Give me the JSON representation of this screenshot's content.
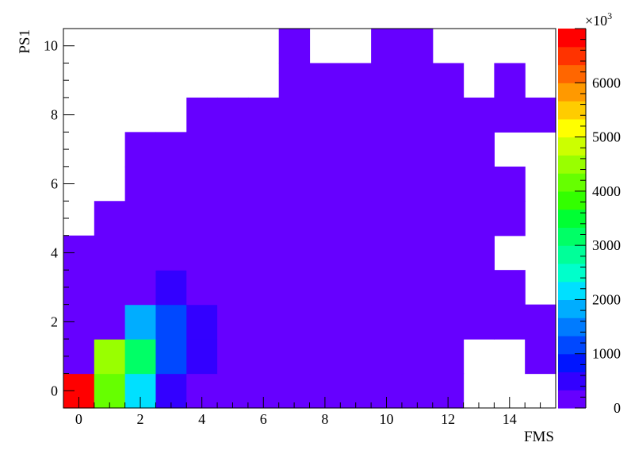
{
  "chart_data": {
    "type": "heatmap",
    "title": "",
    "xlabel": "FMS",
    "ylabel": "PS1",
    "x_bins": [
      0,
      1,
      2,
      3,
      4,
      5,
      6,
      7,
      8,
      9,
      10,
      11,
      12,
      13,
      14,
      15
    ],
    "y_bins": [
      0,
      1,
      2,
      3,
      4,
      5,
      6,
      7,
      8,
      9,
      10
    ],
    "xlim": [
      -0.5,
      15.5
    ],
    "ylim": [
      -0.5,
      10.5
    ],
    "x_ticks": [
      0,
      2,
      4,
      6,
      8,
      10,
      12,
      14
    ],
    "y_ticks": [
      0,
      2,
      4,
      6,
      8,
      10
    ],
    "x_tick_labels": [
      "0",
      "2",
      "4",
      "6",
      "8",
      "10",
      "12",
      "14"
    ],
    "y_tick_labels": [
      "0",
      "2",
      "4",
      "6",
      "8",
      "10"
    ],
    "z_min": 0,
    "z_max": 7000,
    "z_multiplier_label": "×10",
    "z_multiplier_exponent": "3",
    "z_ticks": [
      0,
      1000,
      2000,
      3000,
      4000,
      5000,
      6000
    ],
    "z_tick_labels": [
      "0",
      "1000",
      "2000",
      "3000",
      "4000",
      "5000",
      "6000"
    ],
    "palette": [
      "#6600ff",
      "#3300ff",
      "#0015ff",
      "#0048ff",
      "#007bff",
      "#00adff",
      "#00e0ff",
      "#00ffcb",
      "#00ff99",
      "#00ff66",
      "#00ff33",
      "#33ff00",
      "#66ff00",
      "#99ff00",
      "#ccff00",
      "#ffff00",
      "#ffcc00",
      "#ff9900",
      "#ff6600",
      "#ff3300",
      "#ff0000"
    ],
    "values": [
      [
        7000,
        4300,
        2000,
        600,
        10,
        10,
        10,
        10,
        10,
        10,
        10,
        10,
        10,
        null,
        null,
        null
      ],
      [
        10,
        4600,
        3200,
        1200,
        550,
        10,
        10,
        10,
        10,
        10,
        10,
        10,
        10,
        null,
        null,
        10
      ],
      [
        10,
        10,
        1700,
        1200,
        600,
        10,
        10,
        10,
        10,
        10,
        10,
        10,
        10,
        10,
        10,
        10
      ],
      [
        10,
        10,
        10,
        350,
        10,
        10,
        10,
        10,
        10,
        10,
        10,
        10,
        10,
        10,
        10,
        null
      ],
      [
        10,
        10,
        10,
        10,
        10,
        10,
        10,
        10,
        10,
        10,
        10,
        10,
        10,
        10,
        null,
        null
      ],
      [
        null,
        10,
        10,
        10,
        10,
        10,
        10,
        10,
        10,
        10,
        10,
        10,
        10,
        10,
        10,
        null
      ],
      [
        null,
        null,
        10,
        10,
        10,
        10,
        10,
        10,
        10,
        10,
        10,
        10,
        10,
        10,
        10,
        null
      ],
      [
        null,
        null,
        10,
        10,
        10,
        10,
        10,
        10,
        10,
        10,
        10,
        10,
        10,
        10,
        null,
        null
      ],
      [
        null,
        null,
        null,
        null,
        10,
        10,
        10,
        10,
        10,
        10,
        10,
        10,
        10,
        10,
        10,
        10
      ],
      [
        null,
        null,
        null,
        null,
        null,
        null,
        null,
        10,
        10,
        10,
        10,
        10,
        10,
        null,
        10,
        null
      ],
      [
        null,
        null,
        null,
        null,
        null,
        null,
        null,
        10,
        null,
        null,
        10,
        10,
        null,
        null,
        null,
        null
      ]
    ]
  }
}
